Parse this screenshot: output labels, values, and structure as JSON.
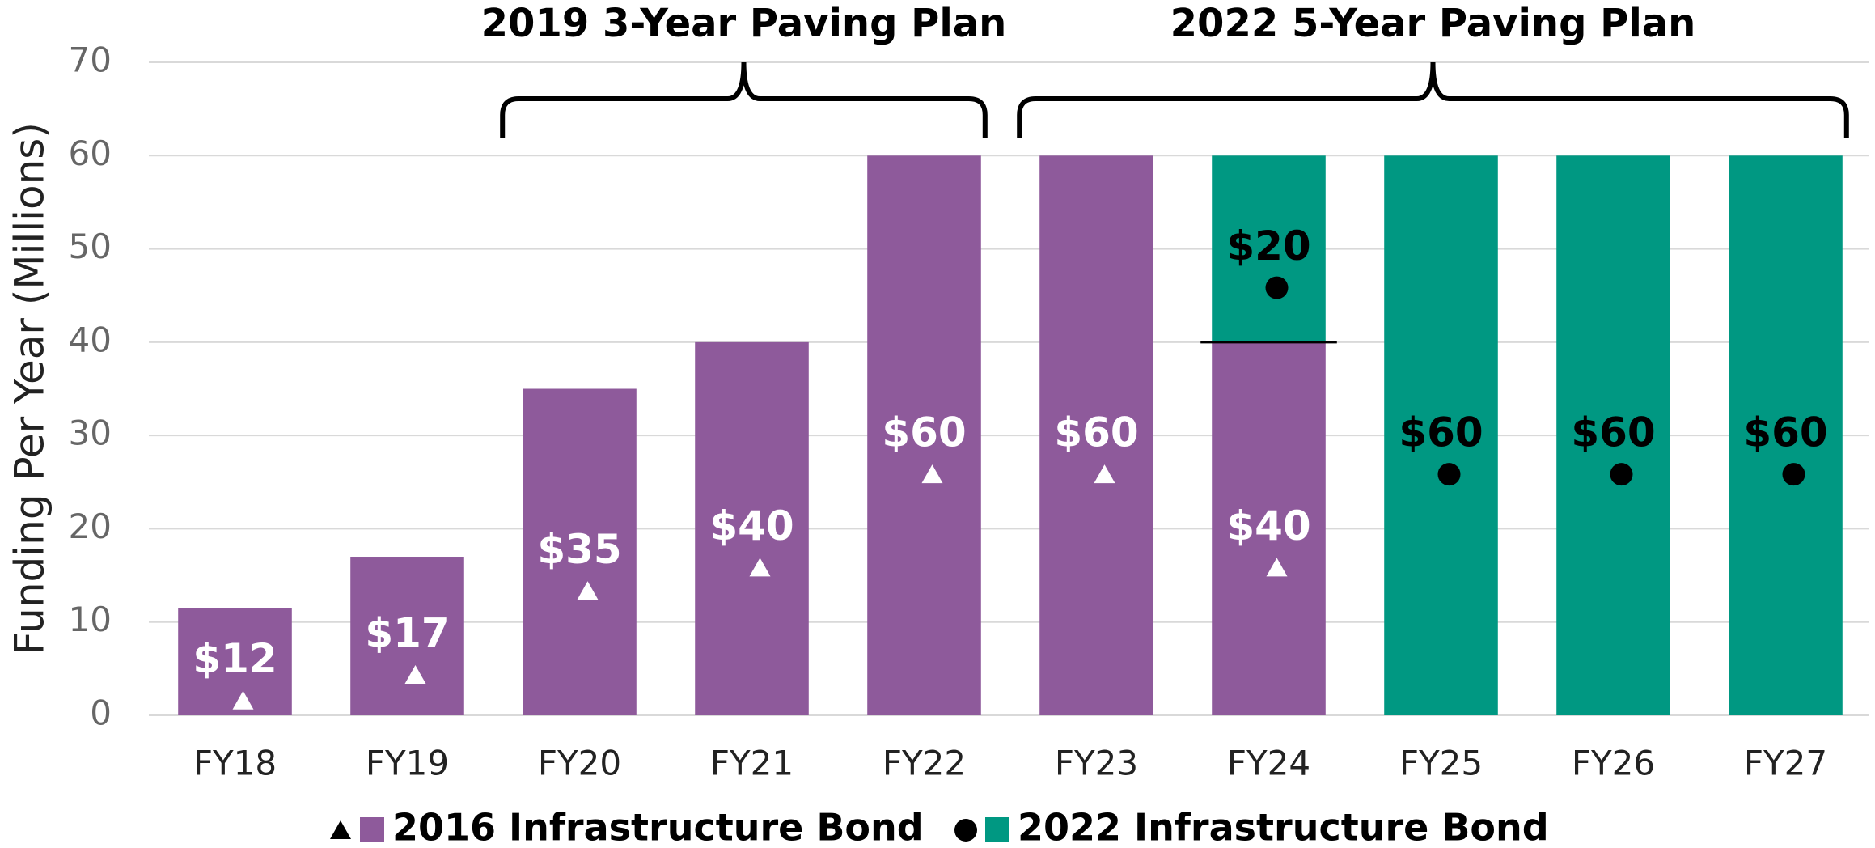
{
  "chart_data": {
    "type": "stacked_bar",
    "y_label": "Funding Per Year (Millions)",
    "categories": [
      "FY18",
      "FY19",
      "FY20",
      "FY21",
      "FY22",
      "FY23",
      "FY24",
      "FY25",
      "FY26",
      "FY27"
    ],
    "series": [
      {
        "name": "2016 Infrastructure Bond",
        "color": "#8e5a9b",
        "marker": "triangle",
        "label_color": "#ffffff",
        "values": [
          11.5,
          17,
          35,
          40,
          60,
          60,
          40,
          null,
          null,
          null
        ],
        "value_labels": [
          "$12",
          "$17",
          "$35",
          "$40",
          "$60",
          "$60",
          "$40",
          null,
          null,
          null
        ]
      },
      {
        "name": "2022 Infrastructure Bond",
        "color": "#009882",
        "marker": "circle",
        "label_color": "#000000",
        "values": [
          null,
          null,
          null,
          null,
          null,
          null,
          20,
          60,
          60,
          60
        ],
        "value_labels": [
          null,
          null,
          null,
          null,
          null,
          null,
          "$20",
          "$60",
          "$60",
          "$60"
        ]
      }
    ],
    "annotations": [
      {
        "text": "2019 3-Year Paving Plan",
        "from": "FY20",
        "to": "FY22"
      },
      {
        "text": "2022 5-Year Paving Plan",
        "from": "FY23",
        "to": "FY27"
      }
    ],
    "ylim": [
      0,
      70
    ],
    "yticks": [
      0,
      10,
      20,
      30,
      40,
      50,
      60,
      70
    ],
    "grid": true
  }
}
